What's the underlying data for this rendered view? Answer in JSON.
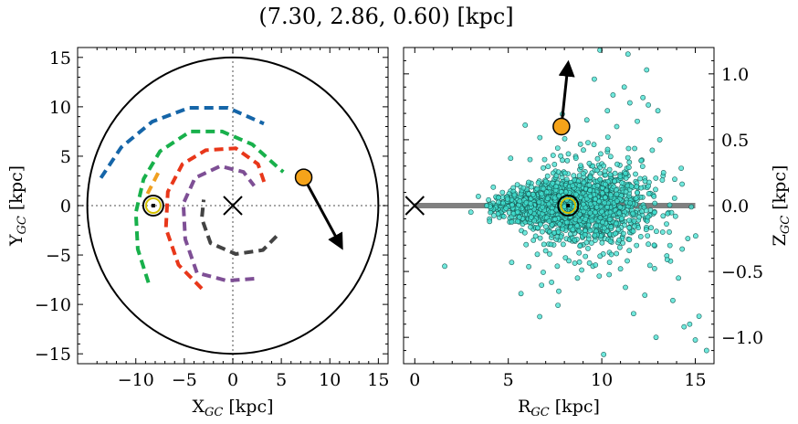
{
  "figure": {
    "title": "(7.30, 2.86, 0.60) [kpc]"
  },
  "chart_data": [
    {
      "type": "scatter",
      "panel": "left",
      "xlabel": "X_GC [kpc]",
      "ylabel": "Y_GC [kpc]",
      "xlim": [
        -16,
        16
      ],
      "ylim": [
        -16,
        16
      ],
      "xticks": [
        -10,
        -5,
        0,
        5,
        10,
        15
      ],
      "yticks": [
        -15,
        -10,
        -5,
        0,
        5,
        10,
        15
      ],
      "circle_radius": 15,
      "crosshair_x": 0,
      "crosshair_y": 0,
      "galactic_center_marker": [
        0,
        0
      ],
      "sun_position": [
        -8.2,
        0
      ],
      "object_position": [
        7.3,
        2.86
      ],
      "velocity_arrow_end": [
        11.2,
        -4.2
      ],
      "spiral_arms": [
        {
          "color": "#1565a8",
          "points": [
            [
              -13.6,
              2.8
            ],
            [
              -11.5,
              5.9
            ],
            [
              -8.3,
              8.5
            ],
            [
              -4.5,
              9.9
            ],
            [
              -0.5,
              9.9
            ],
            [
              3.2,
              8.3
            ]
          ]
        },
        {
          "color": "#18b04b",
          "points": [
            [
              -8.7,
              -7.8
            ],
            [
              -9.8,
              -4.4
            ],
            [
              -10.0,
              -0.7
            ],
            [
              -9.2,
              2.7
            ],
            [
              -7.5,
              5.5
            ],
            [
              -4.4,
              7.5
            ],
            [
              -1.1,
              7.5
            ],
            [
              2.0,
              6.2
            ],
            [
              4.6,
              3.9
            ],
            [
              5.2,
              3.4
            ]
          ]
        },
        {
          "color": "#e8371a",
          "points": [
            [
              -3.2,
              -8.4
            ],
            [
              -5.6,
              -6.0
            ],
            [
              -6.9,
              -2.3
            ],
            [
              -6.7,
              1.4
            ],
            [
              -5.2,
              4.2
            ],
            [
              -2.8,
              5.6
            ],
            [
              0.3,
              5.8
            ],
            [
              2.6,
              4.2
            ],
            [
              3.4,
              1.9
            ]
          ]
        },
        {
          "color": "#7e4f95",
          "points": [
            [
              2.2,
              -7.4
            ],
            [
              -0.6,
              -7.6
            ],
            [
              -3.7,
              -6.8
            ],
            [
              -4.9,
              -3.4
            ],
            [
              -5.1,
              0.2
            ],
            [
              -3.9,
              2.8
            ],
            [
              -1.3,
              4.0
            ],
            [
              1.1,
              3.4
            ],
            [
              2.2,
              2.0
            ]
          ]
        },
        {
          "color": "#434343",
          "points": [
            [
              4.5,
              -3.1
            ],
            [
              3.1,
              -4.5
            ],
            [
              0.3,
              -4.9
            ],
            [
              -2.3,
              -3.8
            ],
            [
              -3.2,
              -1.3
            ],
            [
              -3.0,
              0.6
            ]
          ]
        },
        {
          "color": "#f0a020",
          "points": [
            [
              -7.7,
              3.3
            ],
            [
              -8.8,
              1.2
            ]
          ]
        }
      ]
    },
    {
      "type": "scatter",
      "panel": "right",
      "xlabel": "R_GC [kpc]",
      "ylabel": "Z_GC [kpc]",
      "xlim": [
        -0.6,
        16
      ],
      "ylim": [
        -1.2,
        1.2
      ],
      "xticks": [
        0,
        5,
        10,
        15
      ],
      "yticks": [
        -1.0,
        -0.5,
        0.0,
        0.5,
        1.0
      ],
      "ytick_labels": [
        "−1.0",
        "−0.5",
        "0.0",
        "0.5",
        "1.0"
      ],
      "disk_line": {
        "from": 0,
        "to": 15,
        "z": 0
      },
      "galactic_center_marker": [
        0,
        0
      ],
      "sun_position": [
        8.2,
        0
      ],
      "object_position": [
        7.84,
        0.6
      ],
      "velocity_arrow_end": [
        8.2,
        1.08
      ],
      "cluster_center": [
        8.3,
        0
      ],
      "cluster_points": 1800,
      "scatter_color": "#40e0d0",
      "outlier_points": [
        [
          1.6,
          -0.46
        ],
        [
          7.7,
          -0.65
        ],
        [
          8.7,
          -0.55
        ],
        [
          11.7,
          -0.82
        ],
        [
          12.3,
          -0.68
        ],
        [
          13.8,
          -0.72
        ],
        [
          14.1,
          -0.55
        ],
        [
          14.4,
          -0.92
        ],
        [
          14.7,
          -0.9
        ],
        [
          15.2,
          -0.84
        ],
        [
          15.0,
          -1.02
        ],
        [
          15.6,
          -1.1
        ],
        [
          12.9,
          -1.0
        ],
        [
          10.1,
          -1.13
        ],
        [
          9.9,
          1.18
        ],
        [
          11.2,
          0.9
        ],
        [
          11.5,
          0.78
        ],
        [
          10.6,
          0.84
        ],
        [
          13.0,
          0.72
        ],
        [
          11.4,
          1.15
        ],
        [
          12.4,
          1.03
        ],
        [
          11.9,
          0.64
        ],
        [
          13.1,
          0.5
        ],
        [
          12.7,
          0.42
        ],
        [
          10.3,
          0.72
        ],
        [
          9.6,
          0.96
        ],
        [
          12.2,
          0.82
        ],
        [
          12.8,
          -0.3
        ],
        [
          13.5,
          -0.41
        ],
        [
          14.3,
          -0.33
        ],
        [
          10.8,
          0.6
        ],
        [
          9.2,
          0.65
        ],
        [
          13.3,
          0.25
        ],
        [
          3.4,
          0.07
        ],
        [
          3.0,
          -0.05
        ],
        [
          4.2,
          0.14
        ],
        [
          4.0,
          -0.12
        ],
        [
          13.9,
          0.2
        ],
        [
          14.6,
          -0.25
        ],
        [
          11.0,
          -0.48
        ]
      ]
    }
  ]
}
